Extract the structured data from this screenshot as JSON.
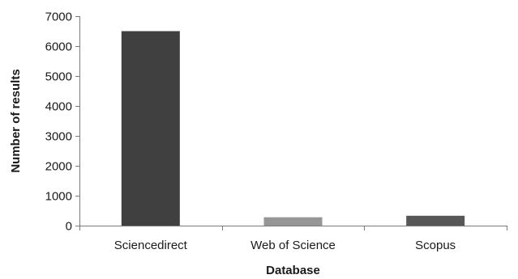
{
  "chart_data": {
    "type": "bar",
    "categories": [
      "Sciencedirect",
      "Web of Science",
      "Scopus"
    ],
    "values": [
      6500,
      280,
      330
    ],
    "xlabel": "Database",
    "ylabel": "Number of results",
    "ylim": [
      0,
      7000
    ],
    "yticks": [
      0,
      1000,
      2000,
      3000,
      4000,
      5000,
      6000,
      7000
    ],
    "grid": false,
    "legend": "none",
    "bar_colors": [
      "#404040",
      "#969696",
      "#575757"
    ],
    "axis_color": "#7a7a7a",
    "text_color": "#1a1a1a"
  }
}
